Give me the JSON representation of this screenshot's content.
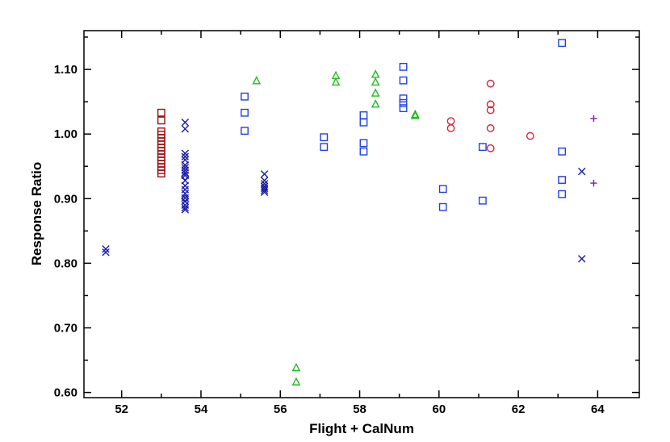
{
  "chart_data": {
    "type": "scatter",
    "xlabel": "Flight + CalNum",
    "ylabel": "Response Ratio",
    "xlim": [
      51.05,
      65.05
    ],
    "ylim": [
      0.592,
      1.16
    ],
    "xticks": [
      52,
      54,
      56,
      58,
      60,
      62,
      64
    ],
    "yticks": [
      0.6,
      0.7,
      0.8,
      0.9,
      1.0,
      1.1
    ],
    "xtick_labels": [
      "52",
      "54",
      "56",
      "58",
      "60",
      "62",
      "64"
    ],
    "ytick_labels": [
      "0.60",
      "0.70",
      "0.80",
      "0.90",
      "1.00",
      "1.10"
    ],
    "grid": false,
    "series": [
      {
        "marker": "x",
        "color": "#1a1aa6",
        "points": [
          [
            51.6,
            0.822
          ],
          [
            51.6,
            0.817
          ],
          [
            53.6,
            1.018
          ],
          [
            53.6,
            1.008
          ],
          [
            53.6,
            0.97
          ],
          [
            53.6,
            0.965
          ],
          [
            53.6,
            0.96
          ],
          [
            53.6,
            0.952
          ],
          [
            53.6,
            0.948
          ],
          [
            53.6,
            0.944
          ],
          [
            53.6,
            0.94
          ],
          [
            53.6,
            0.936
          ],
          [
            53.6,
            0.928
          ],
          [
            53.6,
            0.92
          ],
          [
            53.6,
            0.914
          ],
          [
            53.6,
            0.908
          ],
          [
            53.6,
            0.901
          ],
          [
            53.6,
            0.896
          ],
          [
            53.6,
            0.89
          ],
          [
            53.6,
            0.886
          ],
          [
            53.6,
            0.883
          ],
          [
            55.6,
            0.938
          ],
          [
            55.6,
            0.928
          ],
          [
            55.6,
            0.923
          ],
          [
            55.6,
            0.919
          ],
          [
            55.6,
            0.916
          ],
          [
            55.6,
            0.913
          ],
          [
            55.6,
            0.91
          ],
          [
            63.6,
            0.942
          ],
          [
            63.6,
            0.807
          ]
        ]
      },
      {
        "marker": "square",
        "color": "#9b1111",
        "points": [
          [
            53.0,
            1.033
          ],
          [
            53.0,
            1.021
          ],
          [
            53.0,
            1.004
          ],
          [
            53.0,
            0.999
          ],
          [
            53.0,
            0.994
          ],
          [
            53.0,
            0.989
          ],
          [
            53.0,
            0.984
          ],
          [
            53.0,
            0.979
          ],
          [
            53.0,
            0.974
          ],
          [
            53.0,
            0.969
          ],
          [
            53.0,
            0.964
          ],
          [
            53.0,
            0.959
          ],
          [
            53.0,
            0.954
          ],
          [
            53.0,
            0.949
          ],
          [
            53.0,
            0.944
          ],
          [
            53.0,
            0.939
          ]
        ]
      },
      {
        "marker": "square",
        "color": "#2040e0",
        "points": [
          [
            55.1,
            1.058
          ],
          [
            55.1,
            1.033
          ],
          [
            55.1,
            1.005
          ],
          [
            57.1,
            0.995
          ],
          [
            57.1,
            0.98
          ],
          [
            58.1,
            1.029
          ],
          [
            58.1,
            1.018
          ],
          [
            58.1,
            0.986
          ],
          [
            58.1,
            0.973
          ],
          [
            59.1,
            1.104
          ],
          [
            59.1,
            1.083
          ],
          [
            59.1,
            1.055
          ],
          [
            59.1,
            1.048
          ],
          [
            59.1,
            1.04
          ],
          [
            60.1,
            0.915
          ],
          [
            60.1,
            0.887
          ],
          [
            61.1,
            0.98
          ],
          [
            61.1,
            0.897
          ],
          [
            63.1,
            1.141
          ],
          [
            63.1,
            0.973
          ],
          [
            63.1,
            0.929
          ],
          [
            63.1,
            0.907
          ]
        ]
      },
      {
        "marker": "diamond",
        "color": "#1a1aa6",
        "points": [
          [
            53.6,
            0.934
          ],
          [
            53.6,
            0.9
          ]
        ]
      },
      {
        "marker": "triangle",
        "color": "#22bb22",
        "points": [
          [
            55.4,
            1.082
          ],
          [
            56.4,
            0.638
          ],
          [
            56.4,
            0.616
          ],
          [
            57.4,
            1.09
          ],
          [
            57.4,
            1.08
          ],
          [
            58.4,
            1.092
          ],
          [
            58.4,
            1.08
          ],
          [
            58.4,
            1.063
          ],
          [
            58.4,
            1.046
          ],
          [
            59.4,
            1.03
          ],
          [
            59.4,
            1.028
          ]
        ]
      },
      {
        "marker": "circle",
        "color": "#e0203a",
        "points": [
          [
            60.3,
            1.02
          ],
          [
            60.3,
            1.009
          ],
          [
            61.3,
            1.078
          ],
          [
            61.3,
            1.046
          ],
          [
            61.3,
            1.037
          ],
          [
            61.3,
            1.009
          ],
          [
            61.3,
            0.978
          ],
          [
            62.3,
            0.997
          ]
        ]
      },
      {
        "marker": "plus",
        "color": "#8a1aa6",
        "points": [
          [
            63.9,
            1.024
          ],
          [
            63.9,
            0.924
          ]
        ]
      }
    ]
  }
}
